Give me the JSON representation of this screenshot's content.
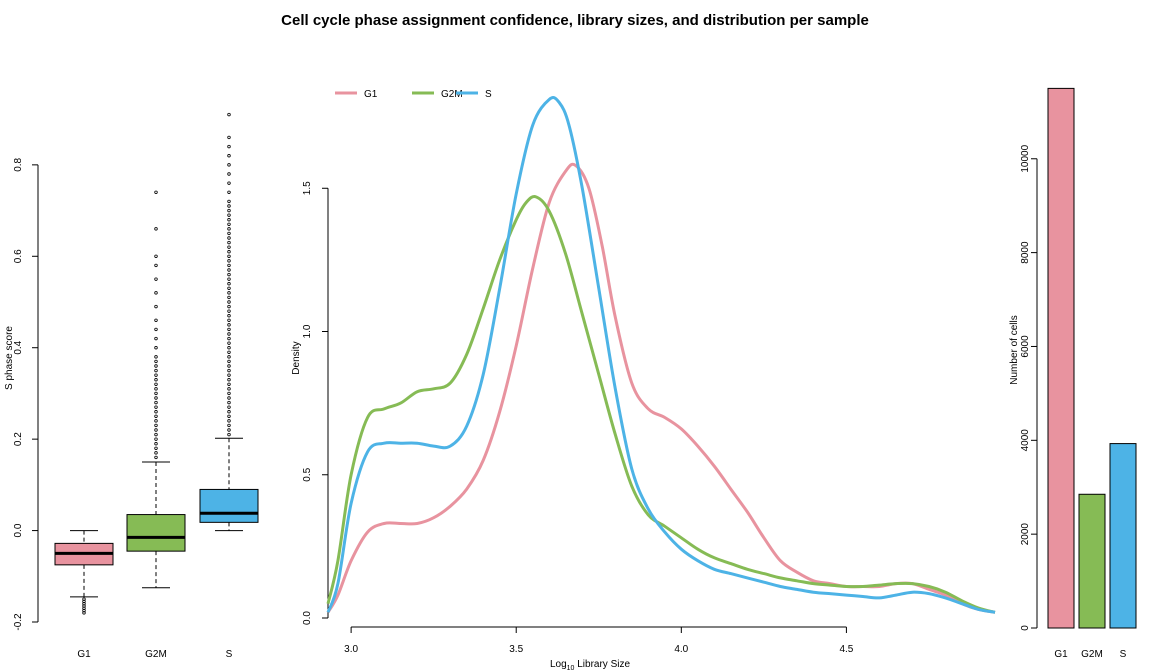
{
  "title": "Cell cycle phase assignment confidence, library sizes, and distribution per sample",
  "colors": {
    "G1": "#e8939f",
    "G2M": "#86bb55",
    "S": "#4db3e6"
  },
  "chart_data": [
    {
      "type": "boxplot",
      "ylabel": "S phase score",
      "ylim": [
        -0.2,
        0.92
      ],
      "yticks": [
        "-0.2",
        "0.0",
        "0.2",
        "0.4",
        "0.6",
        "0.8"
      ],
      "categories": [
        "G1",
        "G2M",
        "S"
      ],
      "boxes": [
        {
          "name": "G1",
          "whisker_low": -0.145,
          "q1": -0.075,
          "median": -0.05,
          "q3": -0.028,
          "whisker_high": 0.0,
          "outliers": [
            -0.15,
            -0.155,
            -0.16,
            -0.165,
            -0.17,
            -0.175,
            -0.18
          ]
        },
        {
          "name": "G2M",
          "whisker_low": -0.125,
          "q1": -0.045,
          "median": -0.015,
          "q3": 0.035,
          "whisker_high": 0.15,
          "outliers": [
            0.16,
            0.17,
            0.18,
            0.19,
            0.2,
            0.21,
            0.22,
            0.23,
            0.24,
            0.25,
            0.26,
            0.27,
            0.28,
            0.29,
            0.3,
            0.31,
            0.32,
            0.33,
            0.34,
            0.35,
            0.36,
            0.37,
            0.38,
            0.4,
            0.42,
            0.44,
            0.46,
            0.49,
            0.52,
            0.55,
            0.58,
            0.6,
            0.66,
            0.74
          ]
        },
        {
          "name": "S",
          "whisker_low": 0.0,
          "q1": 0.018,
          "median": 0.038,
          "q3": 0.09,
          "whisker_high": 0.202,
          "outliers": [
            0.21,
            0.22,
            0.23,
            0.24,
            0.25,
            0.26,
            0.27,
            0.28,
            0.29,
            0.3,
            0.31,
            0.32,
            0.33,
            0.34,
            0.35,
            0.36,
            0.37,
            0.38,
            0.39,
            0.4,
            0.41,
            0.42,
            0.43,
            0.44,
            0.45,
            0.46,
            0.47,
            0.48,
            0.49,
            0.5,
            0.51,
            0.52,
            0.53,
            0.54,
            0.55,
            0.56,
            0.57,
            0.58,
            0.59,
            0.6,
            0.61,
            0.62,
            0.63,
            0.64,
            0.65,
            0.66,
            0.67,
            0.68,
            0.69,
            0.7,
            0.71,
            0.72,
            0.74,
            0.76,
            0.78,
            0.8,
            0.82,
            0.84,
            0.86,
            0.91
          ]
        }
      ]
    },
    {
      "type": "line",
      "xlabel_prefix": "Log",
      "xlabel_sub": "10",
      "xlabel_suffix": " Library Size",
      "ylabel": "Density",
      "xlim": [
        2.93,
        4.95
      ],
      "ylim": [
        0,
        1.85
      ],
      "xticks": [
        "3.0",
        "3.5",
        "4.0",
        "4.5"
      ],
      "yticks": [
        "0.0",
        "0.5",
        "1.0",
        "1.5"
      ],
      "legend": "top-left",
      "series": [
        {
          "name": "G1",
          "x": [
            2.93,
            2.96,
            3.0,
            3.05,
            3.1,
            3.15,
            3.2,
            3.25,
            3.3,
            3.35,
            3.4,
            3.45,
            3.5,
            3.55,
            3.6,
            3.65,
            3.68,
            3.72,
            3.76,
            3.8,
            3.85,
            3.9,
            3.95,
            4.0,
            4.05,
            4.1,
            4.15,
            4.2,
            4.25,
            4.3,
            4.35,
            4.4,
            4.45,
            4.5,
            4.55,
            4.6,
            4.65,
            4.7,
            4.75,
            4.8,
            4.85,
            4.9,
            4.95
          ],
          "y": [
            0.02,
            0.08,
            0.2,
            0.3,
            0.33,
            0.33,
            0.33,
            0.35,
            0.39,
            0.45,
            0.55,
            0.72,
            0.95,
            1.22,
            1.45,
            1.56,
            1.58,
            1.5,
            1.3,
            1.05,
            0.82,
            0.73,
            0.7,
            0.66,
            0.6,
            0.53,
            0.45,
            0.37,
            0.28,
            0.2,
            0.16,
            0.13,
            0.12,
            0.11,
            0.11,
            0.11,
            0.12,
            0.12,
            0.1,
            0.08,
            0.05,
            0.03,
            0.02
          ]
        },
        {
          "name": "G2M",
          "x": [
            2.93,
            2.96,
            3.0,
            3.05,
            3.1,
            3.15,
            3.2,
            3.25,
            3.3,
            3.35,
            3.4,
            3.45,
            3.5,
            3.53,
            3.56,
            3.6,
            3.65,
            3.7,
            3.75,
            3.8,
            3.85,
            3.9,
            3.95,
            4.0,
            4.05,
            4.1,
            4.15,
            4.2,
            4.25,
            4.3,
            4.35,
            4.4,
            4.45,
            4.5,
            4.55,
            4.6,
            4.65,
            4.7,
            4.75,
            4.8,
            4.85,
            4.9,
            4.95
          ],
          "y": [
            0.05,
            0.2,
            0.5,
            0.7,
            0.73,
            0.75,
            0.79,
            0.8,
            0.82,
            0.92,
            1.08,
            1.25,
            1.39,
            1.45,
            1.47,
            1.42,
            1.27,
            1.06,
            0.85,
            0.64,
            0.46,
            0.36,
            0.32,
            0.28,
            0.24,
            0.21,
            0.19,
            0.17,
            0.155,
            0.14,
            0.13,
            0.12,
            0.115,
            0.11,
            0.11,
            0.115,
            0.12,
            0.12,
            0.11,
            0.09,
            0.06,
            0.035,
            0.02
          ]
        },
        {
          "name": "S",
          "x": [
            2.93,
            2.96,
            3.0,
            3.05,
            3.1,
            3.15,
            3.2,
            3.25,
            3.3,
            3.35,
            3.4,
            3.45,
            3.5,
            3.55,
            3.6,
            3.63,
            3.66,
            3.7,
            3.75,
            3.8,
            3.85,
            3.9,
            3.95,
            4.0,
            4.05,
            4.1,
            4.15,
            4.2,
            4.25,
            4.3,
            4.35,
            4.4,
            4.45,
            4.5,
            4.55,
            4.6,
            4.65,
            4.7,
            4.75,
            4.8,
            4.85,
            4.9,
            4.95
          ],
          "y": [
            0.02,
            0.12,
            0.4,
            0.58,
            0.61,
            0.61,
            0.61,
            0.6,
            0.6,
            0.67,
            0.85,
            1.15,
            1.48,
            1.72,
            1.81,
            1.8,
            1.72,
            1.5,
            1.15,
            0.8,
            0.52,
            0.38,
            0.3,
            0.24,
            0.2,
            0.17,
            0.155,
            0.14,
            0.125,
            0.11,
            0.1,
            0.09,
            0.085,
            0.08,
            0.075,
            0.07,
            0.08,
            0.09,
            0.085,
            0.07,
            0.05,
            0.03,
            0.02
          ]
        }
      ]
    },
    {
      "type": "bar",
      "ylabel": "Number of cells",
      "ylim": [
        0,
        11700
      ],
      "yticks": [
        "0",
        "2000",
        "4000",
        "6000",
        "8000",
        "10000"
      ],
      "categories": [
        "G1",
        "G2M",
        "S"
      ],
      "values": [
        11500,
        2850,
        3930
      ]
    }
  ]
}
